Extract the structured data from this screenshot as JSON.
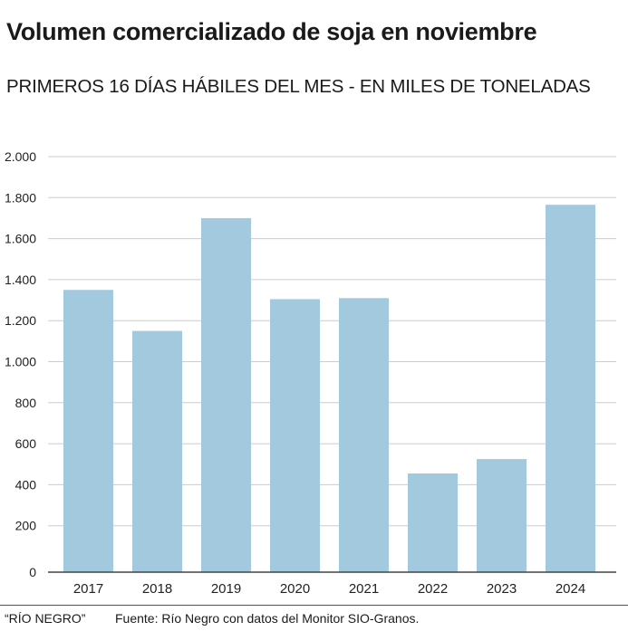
{
  "chart_data": {
    "type": "bar",
    "title": "Volumen comercializado de soja en noviembre",
    "subtitle": "PRIMEROS 16 DÍAS HÁBILES DEL MES - EN MILES DE TONELADAS",
    "categories": [
      "2017",
      "2018",
      "2019",
      "2020",
      "2021",
      "2022",
      "2023",
      "2024"
    ],
    "values": [
      1350,
      1150,
      1700,
      1305,
      1310,
      455,
      525,
      1765
    ],
    "ylim": [
      0,
      2000
    ],
    "yticks": [
      0,
      200,
      400,
      600,
      800,
      1000,
      1200,
      1400,
      1600,
      1800,
      2000
    ],
    "ytick_labels": [
      "0",
      "200",
      "400",
      "600",
      "800",
      "1.000",
      "1.200",
      "1.400",
      "1.600",
      "1.800",
      "2.000"
    ],
    "xlabel": "",
    "ylabel": "",
    "grid": true,
    "bar_color": "#a3c9de"
  },
  "footer": {
    "credit": "“RÍO NEGRO”",
    "source": "Fuente: Río Negro con datos del Monitor SIO-Granos."
  }
}
